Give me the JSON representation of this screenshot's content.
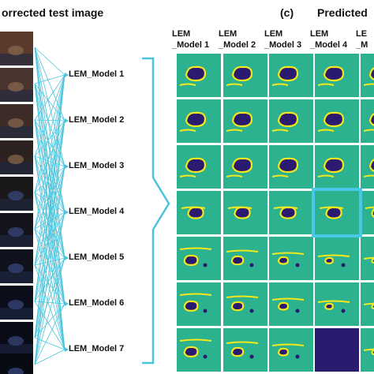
{
  "headings": {
    "left": "orrected test image",
    "right_marker": "(c)",
    "right": "Predicted"
  },
  "models": [
    "LEM_Model 1",
    "LEM_Model 2",
    "LEM_Model 3",
    "LEM_Model 4",
    "LEM_Model 5",
    "LEM_Model 6",
    "LEM_Model 7"
  ],
  "columns": [
    {
      "line1": "LEM",
      "line2": "_Model 1"
    },
    {
      "line1": "LEM",
      "line2": "_Model 2"
    },
    {
      "line1": "LEM",
      "line2": "_Model 3"
    },
    {
      "line1": "LEM",
      "line2": "_Model 4"
    },
    {
      "line1": "LE",
      "line2": "_M"
    }
  ],
  "highlight": {
    "row": 4,
    "col": 4
  },
  "colors": {
    "background_tile": "#2cb28f",
    "segment_blob": "#2a1a70",
    "edge_artifact": "#f4e81c",
    "connector_lines": "#4cc4dc",
    "highlight_box": "#48c8e6",
    "brace": "#4cc4dc"
  }
}
